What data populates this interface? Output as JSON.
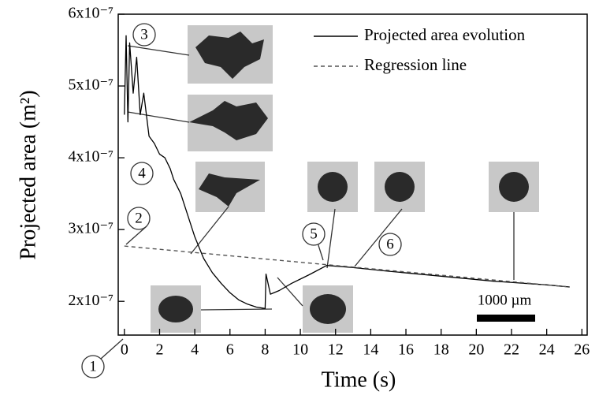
{
  "chart_data": {
    "type": "line",
    "xlabel": "Time (s)",
    "ylabel": "Projected area (m²)",
    "xlim": [
      -0.35,
      26.3
    ],
    "ylim": [
      1.53e-07,
      6e-07
    ],
    "xticks": [
      0,
      2,
      4,
      6,
      8,
      10,
      12,
      14,
      16,
      18,
      20,
      22,
      24,
      26
    ],
    "yticks": [
      {
        "value": 2e-07,
        "label": "2x10⁻⁷"
      },
      {
        "value": 3e-07,
        "label": "3x10⁻⁷"
      },
      {
        "value": 4e-07,
        "label": "4x10⁻⁷"
      },
      {
        "value": 5e-07,
        "label": "5x10⁻⁷"
      },
      {
        "value": 6e-07,
        "label": "6x10⁻⁷"
      }
    ],
    "legend": "upper right",
    "series": [
      {
        "name": "Projected area evolution",
        "color": "#000000",
        "linestyle": "solid",
        "x": [
          0,
          0.1,
          0.2,
          0.3,
          0.5,
          0.7,
          0.9,
          1.1,
          1.4,
          1.7,
          2,
          2.3,
          2.6,
          2.8,
          3.2,
          3.6,
          4,
          4.5,
          5,
          5.5,
          6,
          6.5,
          7,
          7.5,
          8,
          8.05,
          8.3,
          8.8,
          9.5,
          10.5,
          11.5,
          13,
          15,
          18,
          21,
          24,
          25.3
        ],
        "values": [
          4.6e-07,
          5.7e-07,
          4.5e-07,
          5.6e-07,
          4.9e-07,
          5.4e-07,
          4.6e-07,
          4.9e-07,
          4.3e-07,
          4.2e-07,
          4.05e-07,
          4e-07,
          3.85e-07,
          3.7e-07,
          3.5e-07,
          3.2e-07,
          2.9e-07,
          2.6e-07,
          2.4e-07,
          2.25e-07,
          2.12e-07,
          2.02e-07,
          1.96e-07,
          1.92e-07,
          1.9e-07,
          2.38e-07,
          2.1e-07,
          2.15e-07,
          2.25e-07,
          2.37e-07,
          2.5e-07,
          2.47e-07,
          2.42e-07,
          2.35e-07,
          2.28e-07,
          2.23e-07,
          2.2e-07
        ]
      },
      {
        "name": "Regression line",
        "color": "#555555",
        "linestyle": "dashed",
        "x": [
          0,
          25.3
        ],
        "values": [
          2.77e-07,
          2.2e-07
        ]
      }
    ],
    "annotations": [
      "1",
      "2",
      "3",
      "4",
      "5",
      "6"
    ],
    "scale_bar": "1000 µm"
  }
}
